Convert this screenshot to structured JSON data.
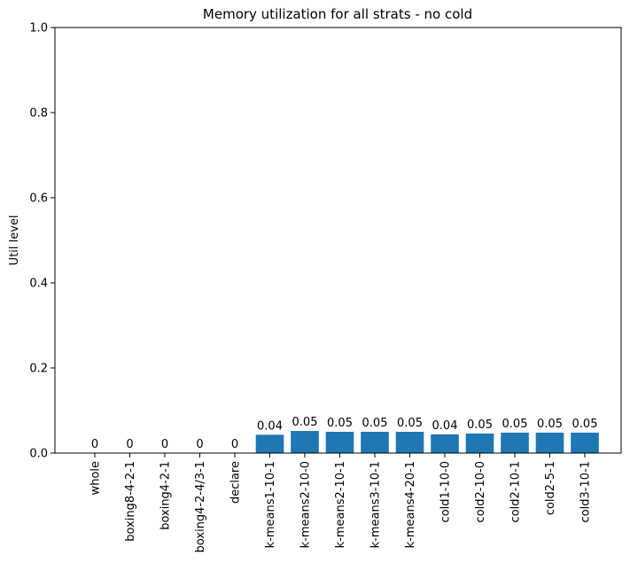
{
  "chart_data": {
    "type": "bar",
    "title": "Memory utilization for all strats - no cold",
    "xlabel": "",
    "ylabel": "Util level",
    "ylim": [
      0,
      1.0
    ],
    "yticks": [
      "0.0",
      "0.2",
      "0.4",
      "0.6",
      "0.8",
      "1.0"
    ],
    "categories": [
      "whole",
      "boxing8-4-2-1",
      "boxing4-2-1",
      "boxing4-2-4/3-1",
      "declare",
      "k-means1-10-1",
      "k-means2-10-0",
      "k-means2-10-1",
      "k-means3-10-1",
      "k-means4-20-1",
      "cold1-10-0",
      "cold2-10-0",
      "cold2-10-1",
      "cold2-5-1",
      "cold3-10-1"
    ],
    "values": [
      0,
      0,
      0,
      0,
      0,
      0.043,
      0.052,
      0.05,
      0.05,
      0.05,
      0.044,
      0.046,
      0.048,
      0.048,
      0.048
    ],
    "data_labels": [
      "0",
      "0",
      "0",
      "0",
      "0",
      "0.04",
      "0.05",
      "0.05",
      "0.05",
      "0.05",
      "0.04",
      "0.05",
      "0.05",
      "0.05",
      "0.05"
    ],
    "bar_color": "#1f77b4",
    "grid": false,
    "legend": "none"
  }
}
